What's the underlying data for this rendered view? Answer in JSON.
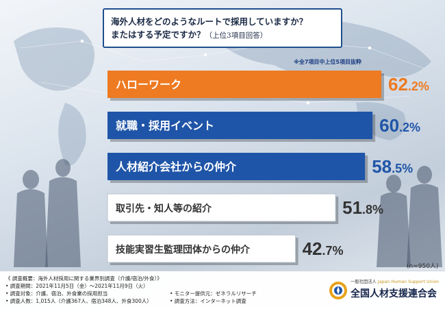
{
  "question": {
    "line1": "海外人材をどのようなルートで採用していますか？",
    "line2": "またはする予定ですか？",
    "line2_sub": "（上位3項目回答）"
  },
  "note": "※全7項目中上位5項目抜粋",
  "n_label": "(n=950人)",
  "chart_data": {
    "type": "bar",
    "orientation": "horizontal",
    "categories": [
      "ハローワーク",
      "就職・採用イベント",
      "人材紹介会社からの仲介",
      "取引先・知人等の紹介",
      "技能実習生監理団体からの仲介"
    ],
    "values": [
      62.2,
      60.2,
      58.5,
      51.8,
      42.7
    ],
    "value_labels": [
      {
        "int": "62",
        "dec": ".2%"
      },
      {
        "int": "60",
        "dec": ".2%"
      },
      {
        "int": "58",
        "dec": ".5%"
      },
      {
        "int": "51",
        "dec": ".8%"
      },
      {
        "int": "42",
        "dec": ".7%"
      }
    ],
    "bar_colors": [
      "#ee7a21",
      "#1f55a8",
      "#1f55a8",
      "#ffffff",
      "#ffffff"
    ],
    "label_colors": [
      "#ffffff",
      "#ffffff",
      "#ffffff",
      "#333333",
      "#333333"
    ],
    "value_colors": [
      "#ee7a21",
      "#1f55a8",
      "#1f55a8",
      "#333333",
      "#333333"
    ]
  },
  "survey": {
    "title": "《 調査概要：海外人材採用に関する業界別調査（介護/宿泊/外食）》",
    "period": "• 調査期間：2021年11月5日（金）〜2021年11月9日（火）",
    "target": "• 調査対象：介護、宿泊、外食業の採用担当",
    "count": "• 調査人数：1,015人（介護367人、宿泊348人、外食300人）",
    "provider": "• モニター提供元：ゼネラルリサーチ",
    "method": "• 調査方法：インターネット調査"
  },
  "logo": {
    "sub_ja": "一般社団法人",
    "sub_en": "Japan Human Support Union",
    "main": "全国人材支援連合会"
  },
  "colors": {
    "orange": "#ee7a21",
    "blue": "#1f55a8",
    "navy": "#14244a",
    "gold": "#e9a21a"
  }
}
